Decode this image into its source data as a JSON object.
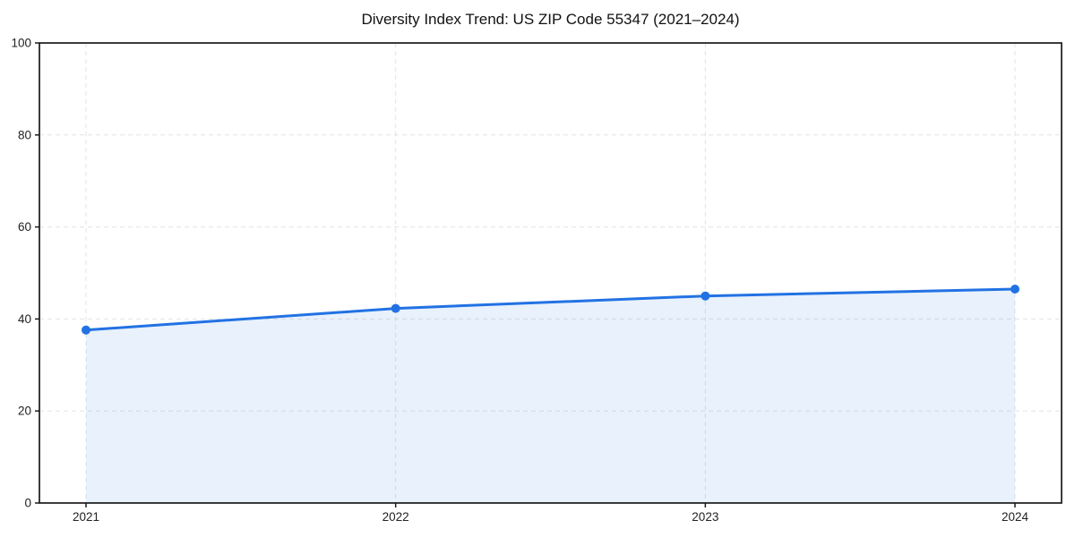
{
  "chart_data": {
    "type": "line",
    "area_fill": true,
    "title": "Diversity Index Trend: US ZIP Code 55347 (2021–2024)",
    "categories": [
      "2021",
      "2022",
      "2023",
      "2024"
    ],
    "values": [
      37.6,
      42.3,
      45.0,
      46.5
    ],
    "xlabel": "",
    "ylabel": "",
    "ylim": [
      0,
      100
    ],
    "yticks": [
      0,
      20,
      40,
      60,
      80,
      100
    ],
    "grid": true,
    "legend": false,
    "marker": "circle",
    "colors": {
      "line": "#2272e3",
      "marker": "#2272e3",
      "fill": "rgba(34,114,227,0.10)",
      "grid": "#e3e3e3",
      "axis": "#1a1a1a",
      "tick_label": "#222222",
      "title": "#111111",
      "background": "#ffffff"
    }
  }
}
